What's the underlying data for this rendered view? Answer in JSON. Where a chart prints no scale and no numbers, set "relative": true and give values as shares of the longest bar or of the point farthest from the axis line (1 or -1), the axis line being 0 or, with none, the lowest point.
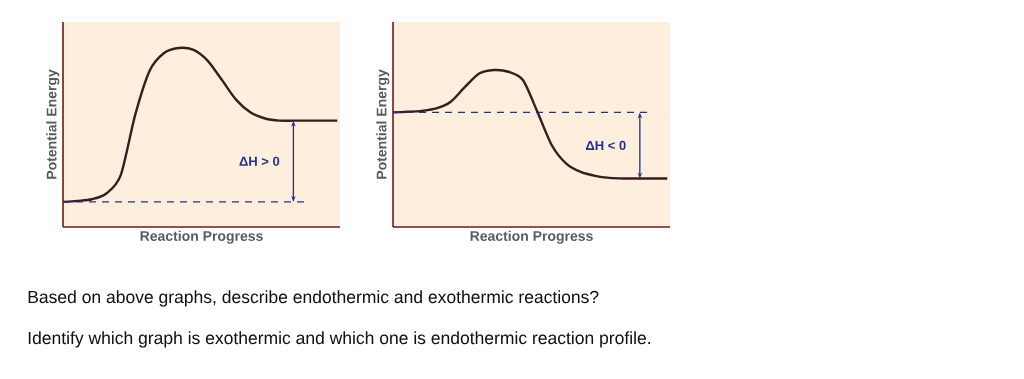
{
  "chart_data": [
    {
      "type": "line",
      "relative": true,
      "xlabel": "Reaction Progress",
      "ylabel": "Potential Energy",
      "color": "#3b1c1c",
      "categories": [
        null,
        null,
        null,
        null,
        null,
        null,
        null,
        null,
        null,
        null,
        null,
        null,
        null,
        null,
        null,
        null,
        null,
        null,
        null,
        null
      ],
      "values": [
        0.14,
        0.146,
        0.155,
        0.187,
        0.29,
        0.626,
        0.873,
        0.972,
        1,
        0.991,
        0.931,
        0.822,
        0.71,
        0.639,
        0.606,
        0.594,
        0.594,
        0.594,
        0.594,
        0.594
      ],
      "ref_lines": [
        {
          "axis": "y",
          "value": 0.14,
          "color": "#22308f",
          "line_style": "dashed"
        }
      ],
      "annotations": [
        "ΔH > 0"
      ]
    },
    {
      "type": "line",
      "relative": true,
      "xlabel": "Reaction Progress",
      "ylabel": "Potential Energy",
      "color": "#3b1c1c",
      "categories": [
        null,
        null,
        null,
        null,
        null,
        null,
        null,
        null,
        null,
        null,
        null,
        null,
        null,
        null,
        null,
        null,
        null,
        null,
        null,
        null
      ],
      "values": [
        0.73,
        0.734,
        0.74,
        0.755,
        0.798,
        0.894,
        0.979,
        1,
        0.989,
        0.936,
        0.734,
        0.521,
        0.404,
        0.351,
        0.326,
        0.313,
        0.309,
        0.309,
        0.309,
        0.309
      ],
      "ref_lines": [
        {
          "axis": "y",
          "value": 0.73,
          "color": "#22308f",
          "line_style": "dashed"
        }
      ],
      "annotations": [
        "ΔH < 0"
      ]
    },
    {
      "type": "other",
      "annotations": [
        "Based on above graphs, describe endothermic and exothermic reactions?",
        "Identify which graph is exothermic and which one is endothermic reaction profile."
      ]
    }
  ]
}
